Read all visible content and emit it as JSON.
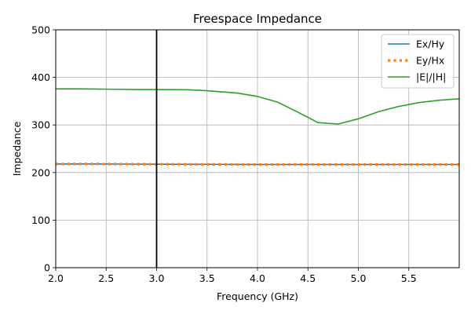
{
  "chart_data": {
    "type": "line",
    "title": "Freespace Impedance",
    "xlabel": "Frequency (GHz)",
    "ylabel": "Impedance",
    "xlim": [
      2.0,
      6.0
    ],
    "ylim": [
      0,
      500
    ],
    "xticks": [
      "2.0",
      "2.5",
      "3.0",
      "3.5",
      "4.0",
      "4.5",
      "5.0",
      "5.5"
    ],
    "yticks": [
      "0",
      "100",
      "200",
      "300",
      "400",
      "500"
    ],
    "grid": true,
    "legend_position": "top-right",
    "vertical_marker_x": 3.0,
    "series": [
      {
        "name": "Ex/Hy",
        "color": "#1f77b4",
        "style": "solid",
        "x": [
          2.0,
          2.2,
          2.4,
          2.6,
          2.8,
          3.0,
          3.2,
          3.4,
          3.6,
          3.8,
          4.0,
          4.2,
          4.4,
          4.6,
          4.8,
          5.0,
          5.2,
          5.4,
          5.6,
          5.8,
          6.0
        ],
        "y": [
          218,
          218,
          218,
          217.8,
          217.6,
          217.5,
          217.4,
          217.3,
          217.2,
          217.1,
          217,
          217,
          217,
          217,
          217,
          217,
          217,
          217,
          217,
          217,
          217
        ]
      },
      {
        "name": "Ey/Hx",
        "color": "#ff7f0e",
        "style": "dotted",
        "x": [
          2.0,
          2.2,
          2.4,
          2.6,
          2.8,
          3.0,
          3.2,
          3.4,
          3.6,
          3.8,
          4.0,
          4.2,
          4.4,
          4.6,
          4.8,
          5.0,
          5.2,
          5.4,
          5.6,
          5.8,
          6.0
        ],
        "y": [
          218,
          218,
          218,
          217.8,
          217.6,
          217.5,
          217.4,
          217.3,
          217.2,
          217.1,
          217,
          217,
          217,
          217,
          217,
          217,
          217,
          217,
          217,
          217,
          217
        ]
      },
      {
        "name": "|E|/|H|",
        "color": "#2ca02c",
        "style": "solid",
        "x": [
          2.0,
          2.2,
          2.4,
          2.6,
          2.8,
          3.0,
          3.3,
          3.5,
          3.8,
          4.0,
          4.2,
          4.4,
          4.6,
          4.8,
          5.0,
          5.2,
          5.4,
          5.6,
          5.8,
          6.0
        ],
        "y": [
          376,
          376,
          375.5,
          375,
          374.5,
          374.5,
          374,
          372,
          367,
          360,
          348,
          327,
          305,
          302,
          313,
          328,
          339,
          347,
          352,
          355
        ]
      }
    ]
  }
}
